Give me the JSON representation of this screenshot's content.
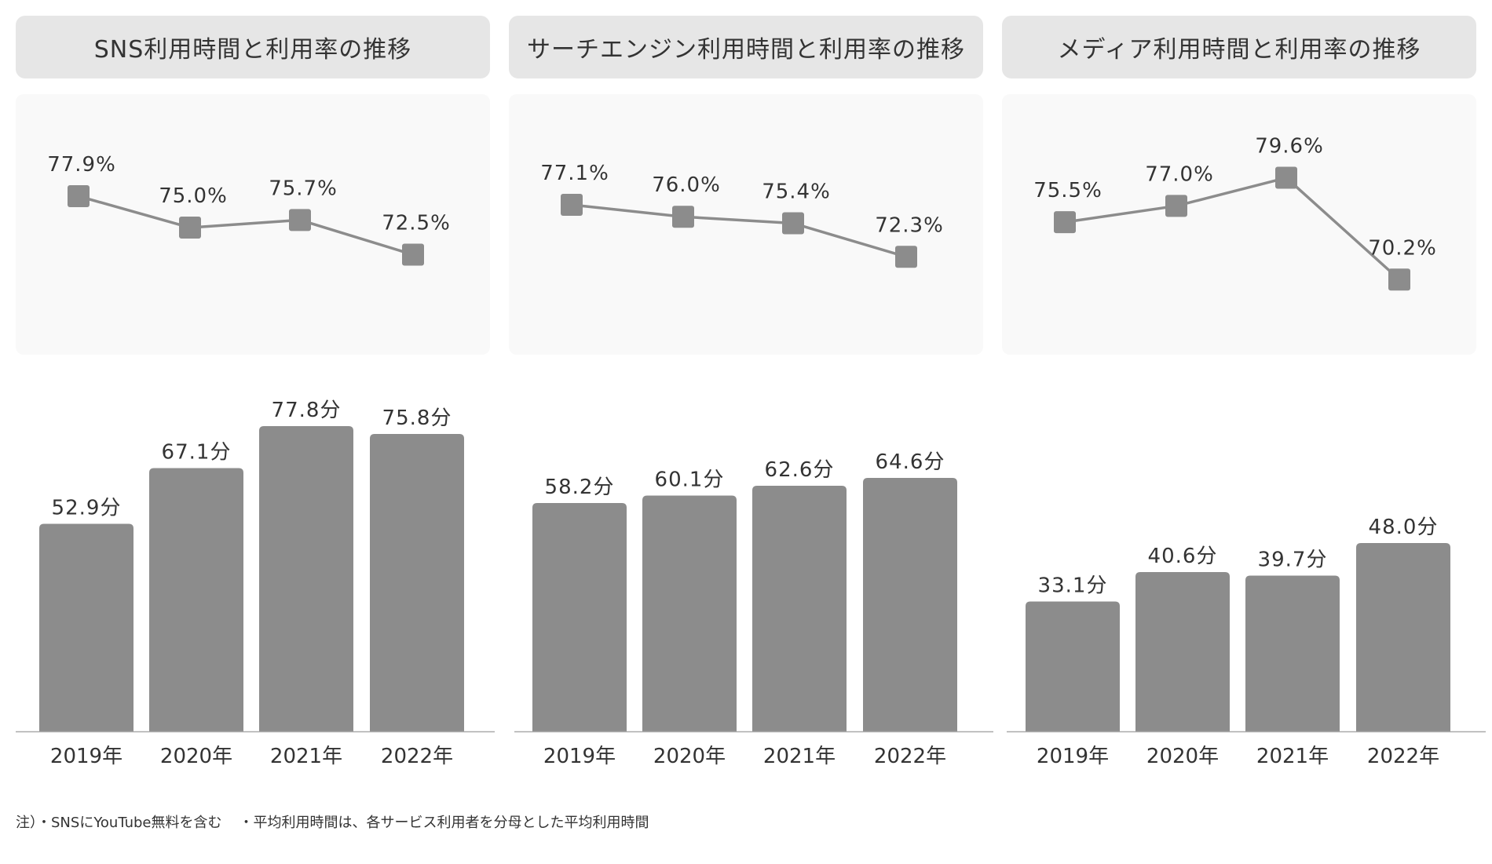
{
  "charts": [
    {
      "title": "SNS利用時間と利用率の推移",
      "line": {
        "unit": "%",
        "values": [
          77.9,
          75.0,
          75.7,
          72.5
        ],
        "labels": [
          "77.9%",
          "75.0%",
          "75.7%",
          "72.5%"
        ]
      },
      "bars": {
        "unit": "分",
        "values": [
          52.9,
          67.1,
          77.8,
          75.8
        ],
        "labels": [
          "52.9分",
          "67.1分",
          "77.8分",
          "75.8分"
        ]
      },
      "categories": [
        "2019年",
        "2020年",
        "2021年",
        "2022年"
      ]
    },
    {
      "title": "サーチエンジン利用時間と利用率の推移",
      "line": {
        "unit": "%",
        "values": [
          77.1,
          76.0,
          75.4,
          72.3
        ],
        "labels": [
          "77.1%",
          "76.0%",
          "75.4%",
          "72.3%"
        ]
      },
      "bars": {
        "unit": "分",
        "values": [
          58.2,
          60.1,
          62.6,
          64.6
        ],
        "labels": [
          "58.2分",
          "60.1分",
          "62.6分",
          "64.6分"
        ]
      },
      "categories": [
        "2019年",
        "2020年",
        "2021年",
        "2022年"
      ]
    },
    {
      "title": "メディア利用時間と利用率の推移",
      "line": {
        "unit": "%",
        "values": [
          75.5,
          77.0,
          79.6,
          70.2
        ],
        "labels": [
          "75.5%",
          "77.0%",
          "79.6%",
          "70.2%"
        ]
      },
      "bars": {
        "unit": "分",
        "values": [
          33.1,
          40.6,
          39.7,
          48.0
        ],
        "labels": [
          "33.1分",
          "40.6分",
          "39.7分",
          "48.0分"
        ]
      },
      "categories": [
        "2019年",
        "2020年",
        "2021年",
        "2022年"
      ]
    }
  ],
  "chart_data": [
    {
      "type": "bar+line",
      "title": "SNS利用時間と利用率の推移",
      "categories": [
        "2019年",
        "2020年",
        "2021年",
        "2022年"
      ],
      "series": [
        {
          "name": "利用率",
          "type": "line",
          "unit": "%",
          "values": [
            77.9,
            75.0,
            75.7,
            72.5
          ]
        },
        {
          "name": "平均利用時間",
          "type": "bar",
          "unit": "分",
          "values": [
            52.9,
            67.1,
            77.8,
            75.8
          ]
        }
      ]
    },
    {
      "type": "bar+line",
      "title": "サーチエンジン利用時間と利用率の推移",
      "categories": [
        "2019年",
        "2020年",
        "2021年",
        "2022年"
      ],
      "series": [
        {
          "name": "利用率",
          "type": "line",
          "unit": "%",
          "values": [
            77.1,
            76.0,
            75.4,
            72.3
          ]
        },
        {
          "name": "平均利用時間",
          "type": "bar",
          "unit": "分",
          "values": [
            58.2,
            60.1,
            62.6,
            64.6
          ]
        }
      ]
    },
    {
      "type": "bar+line",
      "title": "メディア利用時間と利用率の推移",
      "categories": [
        "2019年",
        "2020年",
        "2021年",
        "2022年"
      ],
      "series": [
        {
          "name": "利用率",
          "type": "line",
          "unit": "%",
          "values": [
            75.5,
            77.0,
            79.6,
            70.2
          ]
        },
        {
          "name": "平均利用時間",
          "type": "bar",
          "unit": "分",
          "values": [
            33.1,
            40.6,
            39.7,
            48.0
          ]
        }
      ]
    }
  ],
  "footnote": {
    "prefix": "注）",
    "note1": "・SNSにYouTube無料を含む",
    "note2": "・平均利用時間は、各サービス利用者を分母とした平均利用時間"
  },
  "colors": {
    "mark": "#8c8c8c",
    "title_bg": "#e6e6e6",
    "line_bg": "#f9f9f9",
    "text": "#333333"
  }
}
